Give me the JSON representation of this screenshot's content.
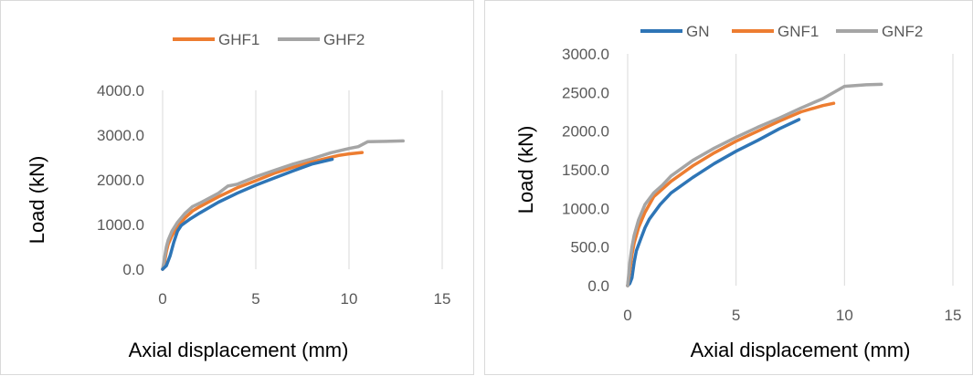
{
  "chart_data": [
    {
      "type": "line",
      "title": "",
      "xlabel": "Axial displacement (mm)",
      "ylabel": "Load (kN)",
      "xlim": [
        0,
        15
      ],
      "ylim": [
        0,
        4000
      ],
      "xticks": [
        "0",
        "5",
        "10",
        "15"
      ],
      "yticks": [
        "0.0",
        "1000.0",
        "2000.0",
        "3000.0",
        "4000.0"
      ],
      "grid": "vertical",
      "legend": "top",
      "series": [
        {
          "name": "GHF1",
          "color": "#ED7D31",
          "x": [
            0,
            0.1,
            0.2,
            0.3,
            0.5,
            0.8,
            1.2,
            1.6,
            2,
            3,
            4,
            5,
            6,
            7,
            8,
            9,
            9.5,
            10,
            10.7
          ],
          "y": [
            0,
            150,
            400,
            560,
            750,
            950,
            1150,
            1300,
            1400,
            1620,
            1820,
            1980,
            2150,
            2280,
            2400,
            2500,
            2550,
            2580,
            2610
          ]
        },
        {
          "name": "GHF2",
          "color": "#A5A5A5",
          "x": [
            0,
            0.1,
            0.2,
            0.3,
            0.5,
            0.8,
            1.2,
            1.6,
            2,
            3,
            3.5,
            4,
            5,
            6,
            7,
            8,
            9,
            10,
            10.5,
            11,
            12,
            12.9
          ],
          "y": [
            0,
            250,
            500,
            650,
            850,
            1050,
            1250,
            1400,
            1480,
            1700,
            1860,
            1900,
            2070,
            2210,
            2350,
            2470,
            2600,
            2700,
            2740,
            2850,
            2860,
            2870
          ]
        },
        {
          "x": [
            0,
            0.2,
            0.4,
            0.6,
            0.8,
            1,
            1.5,
            2,
            3,
            4,
            5,
            6,
            7,
            8,
            9.1
          ],
          "y": [
            0,
            80,
            300,
            600,
            850,
            980,
            1130,
            1260,
            1500,
            1700,
            1880,
            2040,
            2200,
            2350,
            2460
          ],
          "color": "#2E75B6"
        }
      ]
    },
    {
      "type": "line",
      "title": "",
      "xlabel": "Axial displacement (mm)",
      "ylabel": "Load (kN)",
      "xlim": [
        0,
        15
      ],
      "ylim": [
        0,
        3000
      ],
      "xticks": [
        "0",
        "5",
        "10",
        "15"
      ],
      "yticks": [
        "0.0",
        "500.0",
        "1000.0",
        "1500.0",
        "2000.0",
        "2500.0",
        "3000.0"
      ],
      "grid": "vertical",
      "legend": "top",
      "series": [
        {
          "name": "GN",
          "color": "#2E75B6",
          "x": [
            0,
            0.1,
            0.2,
            0.3,
            0.4,
            0.6,
            0.8,
            1,
            1.5,
            2,
            3,
            4,
            5,
            6,
            7,
            7.9
          ],
          "y": [
            0,
            30,
            100,
            300,
            450,
            600,
            750,
            860,
            1050,
            1200,
            1400,
            1580,
            1740,
            1880,
            2030,
            2150
          ]
        },
        {
          "name": "GNF1",
          "color": "#ED7D31",
          "x": [
            0,
            0.1,
            0.2,
            0.3,
            0.5,
            0.8,
            1.2,
            1.6,
            2,
            3,
            4,
            5,
            6,
            7,
            8,
            9,
            9.5
          ],
          "y": [
            0,
            200,
            400,
            550,
            750,
            950,
            1150,
            1250,
            1350,
            1550,
            1720,
            1870,
            2000,
            2130,
            2250,
            2330,
            2360
          ]
        },
        {
          "name": "GNF2",
          "color": "#A5A5A5",
          "x": [
            0,
            0.1,
            0.2,
            0.3,
            0.5,
            0.8,
            1.2,
            1.6,
            2,
            3,
            4,
            5,
            6,
            7,
            8,
            9,
            10,
            11,
            11.7
          ],
          "y": [
            0,
            300,
            500,
            650,
            850,
            1050,
            1200,
            1300,
            1420,
            1620,
            1780,
            1920,
            2050,
            2170,
            2300,
            2420,
            2580,
            2600,
            2605
          ]
        }
      ]
    }
  ]
}
